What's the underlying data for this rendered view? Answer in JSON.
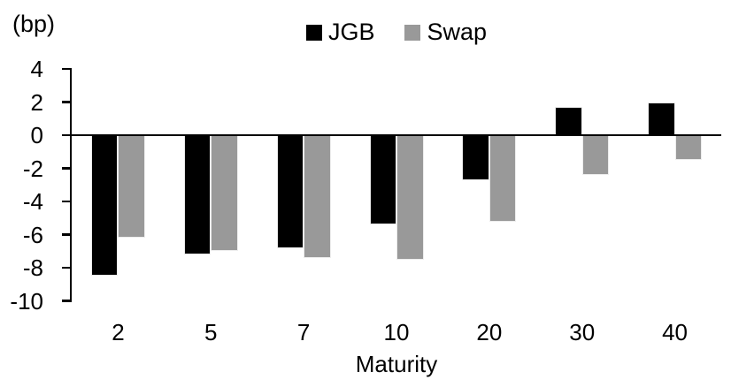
{
  "chart_data": {
    "type": "bar",
    "title": "",
    "unit_label": "(bp)",
    "xlabel": "Maturity",
    "ylabel": "",
    "categories": [
      "2",
      "5",
      "7",
      "10",
      "20",
      "30",
      "40"
    ],
    "series": [
      {
        "name": "JGB",
        "color": "#000000",
        "values": [
          -8.5,
          -7.2,
          -6.8,
          -5.4,
          -2.7,
          1.7,
          2.0
        ]
      },
      {
        "name": "Swap",
        "color": "#999999",
        "values": [
          -6.2,
          -7.0,
          -7.4,
          -7.5,
          -5.2,
          -2.4,
          -1.5
        ]
      }
    ],
    "ylim": [
      -10,
      4
    ],
    "yticks": [
      4,
      2,
      0,
      -2,
      -4,
      -6,
      -8,
      -10
    ],
    "grid": false,
    "legend_position": "top-center",
    "colors": {
      "axis": "#000000",
      "jgb_bar": "#000000",
      "swap_bar": "#999999",
      "background": "#ffffff"
    }
  }
}
